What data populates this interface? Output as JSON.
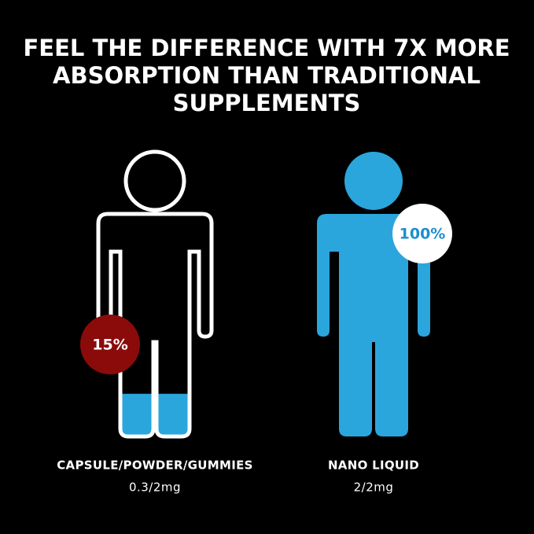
{
  "header": {
    "title": [
      "FEEL THE DIFFERENCE WITH 7X MORE",
      "ABSORPTION THAN TRADITIONAL",
      "SUPPLEMENTS"
    ]
  },
  "figures": [
    {
      "name": "CAPSULE/POWDER/GUMMIES",
      "dose": "0.3/2mg",
      "value": 15,
      "value_label": "15%"
    },
    {
      "name": "NANO LIQUID",
      "dose": "2/2mg",
      "value": 100,
      "value_label": "100%"
    }
  ]
}
